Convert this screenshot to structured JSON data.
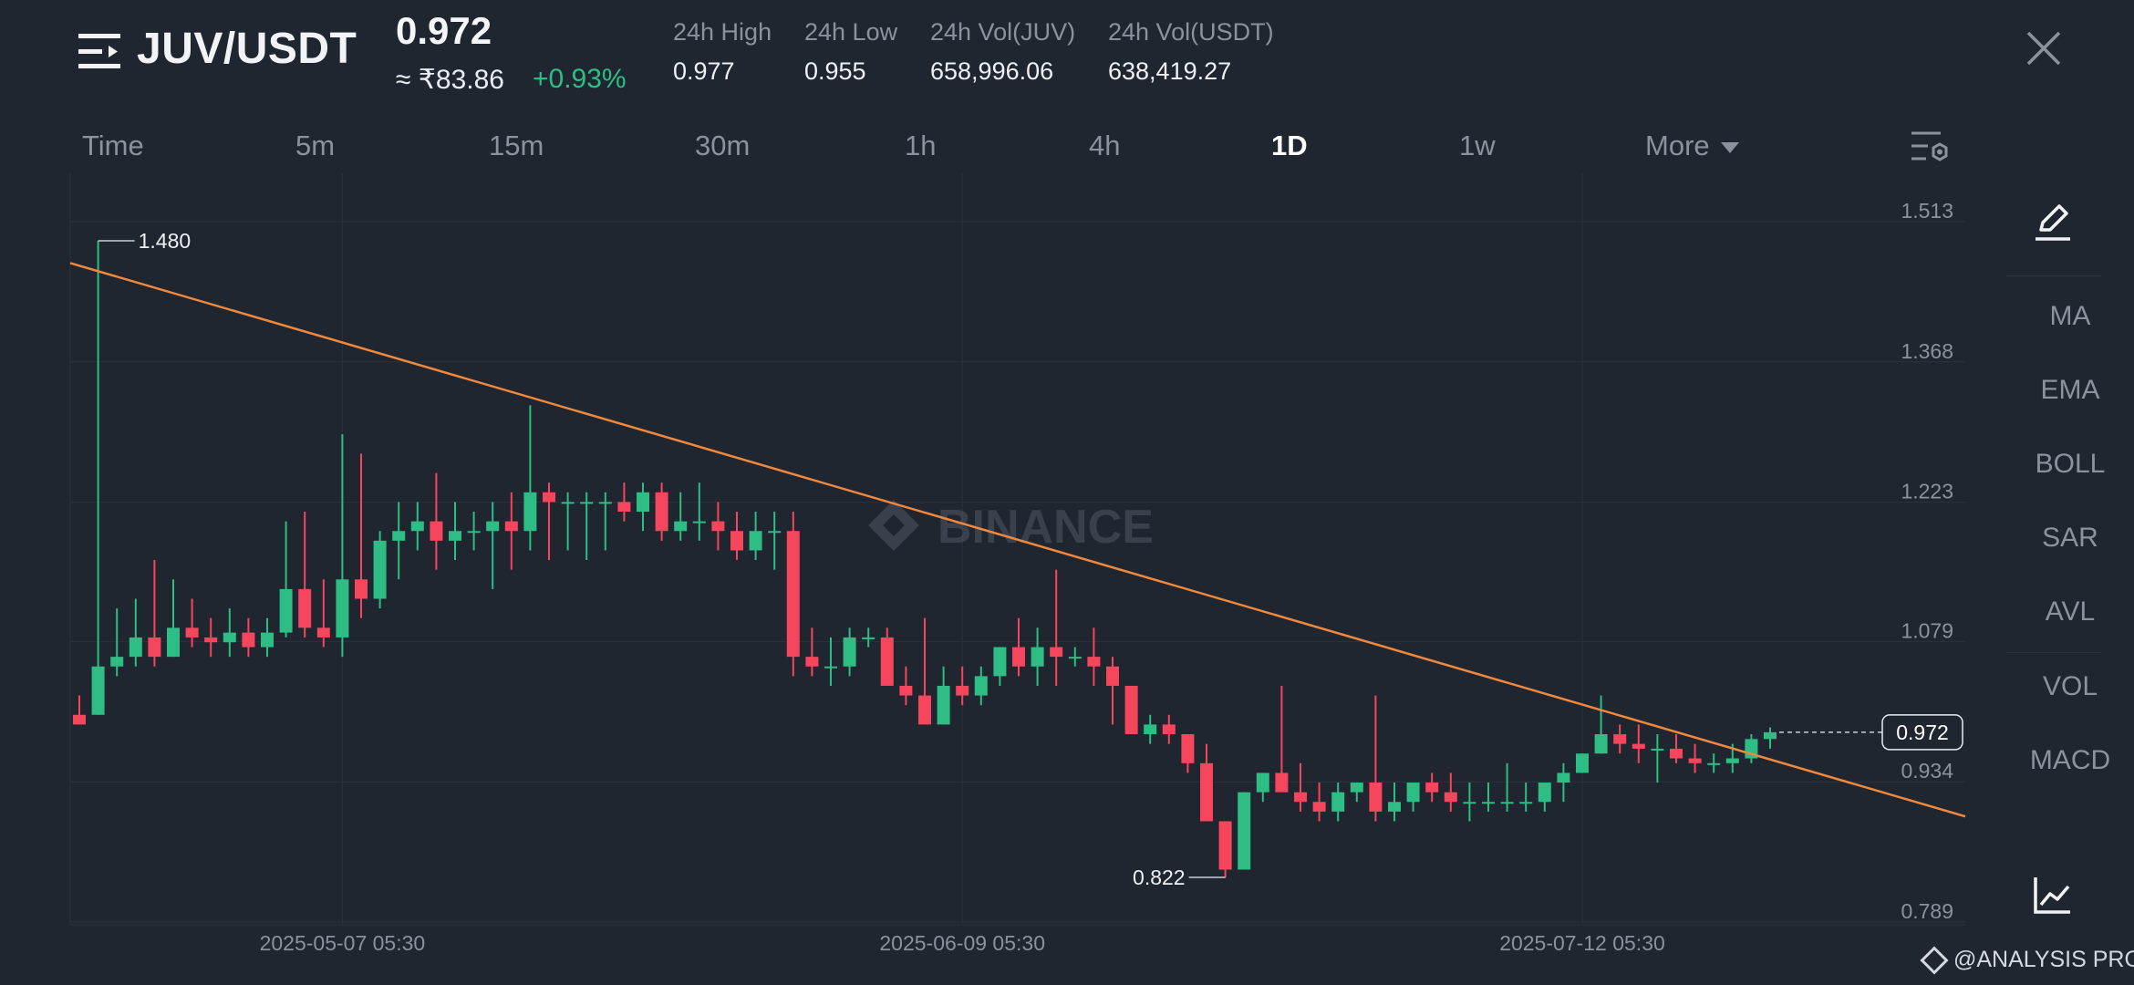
{
  "header": {
    "pair": "JUV/USDT",
    "price": "0.972",
    "fiat_price": "≈ ₹83.86",
    "change": "+0.93%",
    "stats": [
      {
        "label": "24h High",
        "value": "0.977"
      },
      {
        "label": "24h Low",
        "value": "0.955"
      },
      {
        "label": "24h Vol(JUV)",
        "value": "658,996.06"
      },
      {
        "label": "24h Vol(USDT)",
        "value": "638,419.27"
      }
    ]
  },
  "tabs": [
    "Time",
    "5m",
    "15m",
    "30m",
    "1h",
    "4h",
    "1D",
    "1w"
  ],
  "active_tab": "1D",
  "more_label": "More",
  "side_menu": [
    "MA",
    "EMA",
    "BOLL",
    "SAR",
    "AVL",
    "VOL",
    "MACD"
  ],
  "watermark": "@ANALYSIS PRO",
  "chart_data": {
    "type": "candlestick",
    "y_ticks": [
      1.513,
      1.368,
      1.223,
      1.079,
      0.934,
      0.789
    ],
    "ylim": [
      0.78,
      1.53
    ],
    "x_ticks": [
      {
        "label": "2025-05-07 05:30",
        "index": 14
      },
      {
        "label": "2025-06-09 05:30",
        "index": 47
      },
      {
        "label": "2025-07-12 05:30",
        "index": 80
      }
    ],
    "current_price": "0.972",
    "high_marker": {
      "label": "1.480",
      "index": 1
    },
    "low_marker": {
      "label": "0.822",
      "index": 61
    },
    "watermark": "BINANCE",
    "trendline": {
      "start": 1.457,
      "end": 0.885
    },
    "candles": [
      [
        0.99,
        0.98,
        1.01,
        0.98
      ],
      [
        0.99,
        1.04,
        1.48,
        0.99
      ],
      [
        1.04,
        1.05,
        1.1,
        1.03
      ],
      [
        1.05,
        1.07,
        1.11,
        1.04
      ],
      [
        1.07,
        1.05,
        1.15,
        1.04
      ],
      [
        1.05,
        1.08,
        1.13,
        1.05
      ],
      [
        1.08,
        1.07,
        1.11,
        1.06
      ],
      [
        1.07,
        1.065,
        1.09,
        1.05
      ],
      [
        1.065,
        1.075,
        1.1,
        1.05
      ],
      [
        1.075,
        1.06,
        1.09,
        1.05
      ],
      [
        1.06,
        1.075,
        1.09,
        1.05
      ],
      [
        1.075,
        1.12,
        1.19,
        1.07
      ],
      [
        1.12,
        1.08,
        1.2,
        1.07
      ],
      [
        1.08,
        1.07,
        1.13,
        1.06
      ],
      [
        1.07,
        1.13,
        1.28,
        1.05
      ],
      [
        1.13,
        1.11,
        1.26,
        1.09
      ],
      [
        1.11,
        1.17,
        1.18,
        1.1
      ],
      [
        1.17,
        1.18,
        1.21,
        1.13
      ],
      [
        1.18,
        1.19,
        1.21,
        1.16
      ],
      [
        1.19,
        1.17,
        1.24,
        1.14
      ],
      [
        1.17,
        1.18,
        1.21,
        1.15
      ],
      [
        1.18,
        1.18,
        1.2,
        1.16
      ],
      [
        1.18,
        1.19,
        1.21,
        1.12
      ],
      [
        1.19,
        1.18,
        1.22,
        1.14
      ],
      [
        1.18,
        1.22,
        1.31,
        1.16
      ],
      [
        1.22,
        1.21,
        1.23,
        1.15
      ],
      [
        1.21,
        1.21,
        1.22,
        1.16
      ],
      [
        1.21,
        1.21,
        1.22,
        1.15
      ],
      [
        1.21,
        1.21,
        1.22,
        1.16
      ],
      [
        1.21,
        1.2,
        1.23,
        1.19
      ],
      [
        1.2,
        1.22,
        1.23,
        1.18
      ],
      [
        1.22,
        1.18,
        1.23,
        1.17
      ],
      [
        1.18,
        1.19,
        1.22,
        1.17
      ],
      [
        1.19,
        1.19,
        1.23,
        1.17
      ],
      [
        1.19,
        1.18,
        1.21,
        1.16
      ],
      [
        1.18,
        1.16,
        1.2,
        1.15
      ],
      [
        1.16,
        1.18,
        1.2,
        1.15
      ],
      [
        1.18,
        1.18,
        1.2,
        1.14
      ],
      [
        1.18,
        1.05,
        1.2,
        1.03
      ],
      [
        1.05,
        1.04,
        1.08,
        1.03
      ],
      [
        1.04,
        1.04,
        1.07,
        1.02
      ],
      [
        1.04,
        1.07,
        1.08,
        1.03
      ],
      [
        1.07,
        1.07,
        1.08,
        1.06
      ],
      [
        1.07,
        1.02,
        1.08,
        1.02
      ],
      [
        1.02,
        1.01,
        1.04,
        1.0
      ],
      [
        1.01,
        0.98,
        1.09,
        0.98
      ],
      [
        0.98,
        1.02,
        1.04,
        0.98
      ],
      [
        1.02,
        1.01,
        1.04,
        1.0
      ],
      [
        1.01,
        1.03,
        1.04,
        1.0
      ],
      [
        1.03,
        1.06,
        1.06,
        1.02
      ],
      [
        1.06,
        1.04,
        1.09,
        1.03
      ],
      [
        1.04,
        1.06,
        1.08,
        1.02
      ],
      [
        1.06,
        1.05,
        1.14,
        1.02
      ],
      [
        1.05,
        1.05,
        1.06,
        1.04
      ],
      [
        1.05,
        1.04,
        1.08,
        1.02
      ],
      [
        1.04,
        1.02,
        1.05,
        0.98
      ],
      [
        1.02,
        0.97,
        1.02,
        0.97
      ],
      [
        0.97,
        0.98,
        0.99,
        0.96
      ],
      [
        0.98,
        0.97,
        0.99,
        0.96
      ],
      [
        0.97,
        0.94,
        0.97,
        0.93
      ],
      [
        0.94,
        0.88,
        0.96,
        0.88
      ],
      [
        0.88,
        0.83,
        0.88,
        0.822
      ],
      [
        0.83,
        0.91,
        0.91,
        0.83
      ],
      [
        0.91,
        0.93,
        0.93,
        0.9
      ],
      [
        0.93,
        0.91,
        1.02,
        0.91
      ],
      [
        0.91,
        0.9,
        0.94,
        0.89
      ],
      [
        0.9,
        0.89,
        0.92,
        0.88
      ],
      [
        0.89,
        0.91,
        0.92,
        0.88
      ],
      [
        0.91,
        0.92,
        0.92,
        0.9
      ],
      [
        0.92,
        0.89,
        1.01,
        0.88
      ],
      [
        0.89,
        0.9,
        0.92,
        0.88
      ],
      [
        0.9,
        0.92,
        0.92,
        0.89
      ],
      [
        0.92,
        0.91,
        0.93,
        0.9
      ],
      [
        0.91,
        0.9,
        0.93,
        0.89
      ],
      [
        0.9,
        0.9,
        0.92,
        0.88
      ],
      [
        0.9,
        0.9,
        0.92,
        0.89
      ],
      [
        0.9,
        0.9,
        0.94,
        0.89
      ],
      [
        0.9,
        0.9,
        0.92,
        0.89
      ],
      [
        0.9,
        0.92,
        0.92,
        0.89
      ],
      [
        0.92,
        0.93,
        0.94,
        0.9
      ],
      [
        0.93,
        0.95,
        0.95,
        0.93
      ],
      [
        0.95,
        0.97,
        1.01,
        0.95
      ],
      [
        0.97,
        0.96,
        0.98,
        0.95
      ],
      [
        0.96,
        0.955,
        0.98,
        0.94
      ],
      [
        0.955,
        0.955,
        0.97,
        0.92
      ],
      [
        0.955,
        0.945,
        0.97,
        0.94
      ],
      [
        0.945,
        0.94,
        0.96,
        0.93
      ],
      [
        0.94,
        0.94,
        0.95,
        0.93
      ],
      [
        0.94,
        0.945,
        0.96,
        0.93
      ],
      [
        0.945,
        0.965,
        0.97,
        0.94
      ],
      [
        0.965,
        0.972,
        0.977,
        0.955
      ]
    ]
  }
}
